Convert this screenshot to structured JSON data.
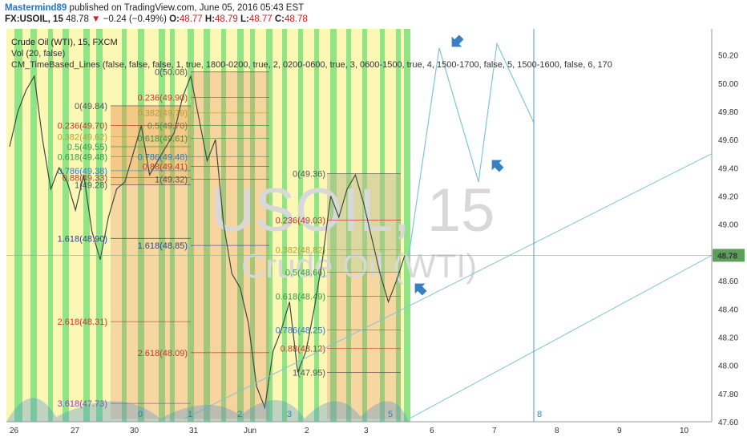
{
  "header": {
    "author": "Mastermind89",
    "published": "published on TradingView.com, June 05, 2016 05:43 EST",
    "symbol": "FX:USOIL, 15",
    "last": "48.78",
    "change": "−0.24 (−0.49%)",
    "o_label": "O:",
    "o_value": "48.77",
    "h_label": "H:",
    "h_value": "48.79",
    "l_label": "L:",
    "l_value": "48.77",
    "c_label": "C:",
    "c_value": "48.78",
    "legend_title": "Crude Oil (WTI), 15, FXCM",
    "legend_vol": "Vol (20, false)",
    "legend_lines": "CM_TimeBased_Lines (false, false, false, 1, true, 1800-0200, true, 2, 0200-0600, true, 3, 0600-1500, true, 4, 1500-1700, false, 5, 1500-1600, false, 6, 170"
  },
  "watermark": {
    "symbol": "USOIL, 15",
    "name": "Crude Oil (WTI)"
  },
  "colors": {
    "session_green": "#7ee07e",
    "session_yellow": "#fbf7b5",
    "fib_red": "#c0392b",
    "fib_blue": "#2d7fbd",
    "price_badge": "#5aa05a",
    "projection": "#7fc6d4",
    "arrow": "#3a7fc3"
  },
  "chart_data": {
    "type": "line",
    "title": "Crude Oil (WTI), 15, FXCM",
    "ylim": [
      47.6,
      50.3
    ],
    "y_ticks": [
      "50.20",
      "50.00",
      "49.80",
      "49.60",
      "49.40",
      "49.20",
      "49.00",
      "48.80",
      "48.60",
      "48.40",
      "48.20",
      "48.00",
      "47.80",
      "47.60"
    ],
    "x_ticks": [
      "26",
      "27",
      "30",
      "31",
      "Jun",
      "2",
      "3",
      "6",
      "7",
      "8",
      "9",
      "10"
    ],
    "current_price": "48.78",
    "series": [
      {
        "values": [
          49.55,
          49.8,
          49.95,
          50.05,
          49.6,
          49.25,
          49.4,
          49.3,
          49.1,
          49.35,
          48.95,
          48.75,
          49.05,
          49.25,
          49.3,
          49.5,
          49.7,
          49.35,
          49.45,
          49.55,
          49.65,
          49.9,
          50.05,
          49.75,
          49.45,
          49.6,
          49.0,
          48.65,
          48.55,
          48.3,
          47.85,
          47.7,
          48.1,
          48.25,
          48.45,
          47.95,
          48.1,
          48.4,
          48.75,
          49.2,
          49.05,
          49.25,
          49.35,
          49.15,
          48.9,
          48.65,
          48.45,
          48.6,
          48.78
        ]
      }
    ],
    "projection_path": [
      48.78,
      50.25,
      49.3,
      50.28,
      49.72
    ],
    "fib_levels_set1": [
      "0(49.84)",
      "0.236(49.70)",
      "0.382(49.62)",
      "0.5(49.55)",
      "0.618(49.48)",
      "0.786(49.38)",
      "0.88(49.33)",
      "1(49.28)",
      "1.618(48.90)",
      "2.618(48.31)",
      "3.618(47.73)"
    ],
    "fib_levels_set2": [
      "0(50.08)",
      "0.236(49.90)",
      "0.382(49.79)",
      "0.5(49.70)",
      "0.618(49.61)",
      "0.786(49.48)",
      "0.88(49.41)",
      "1(49.32)",
      "1.618(48.85)",
      "2.618(48.09)"
    ],
    "fib_levels_set3": [
      "0(49.36)",
      "0.236(49.03)",
      "0.382(48.82)",
      "0.5(48.66)",
      "0.618(48.49)",
      "0.786(48.25)",
      "0.88(48.12)",
      "1(47.95)"
    ],
    "session_labels": [
      "0",
      "1",
      "2",
      "3",
      "5",
      "8"
    ]
  }
}
